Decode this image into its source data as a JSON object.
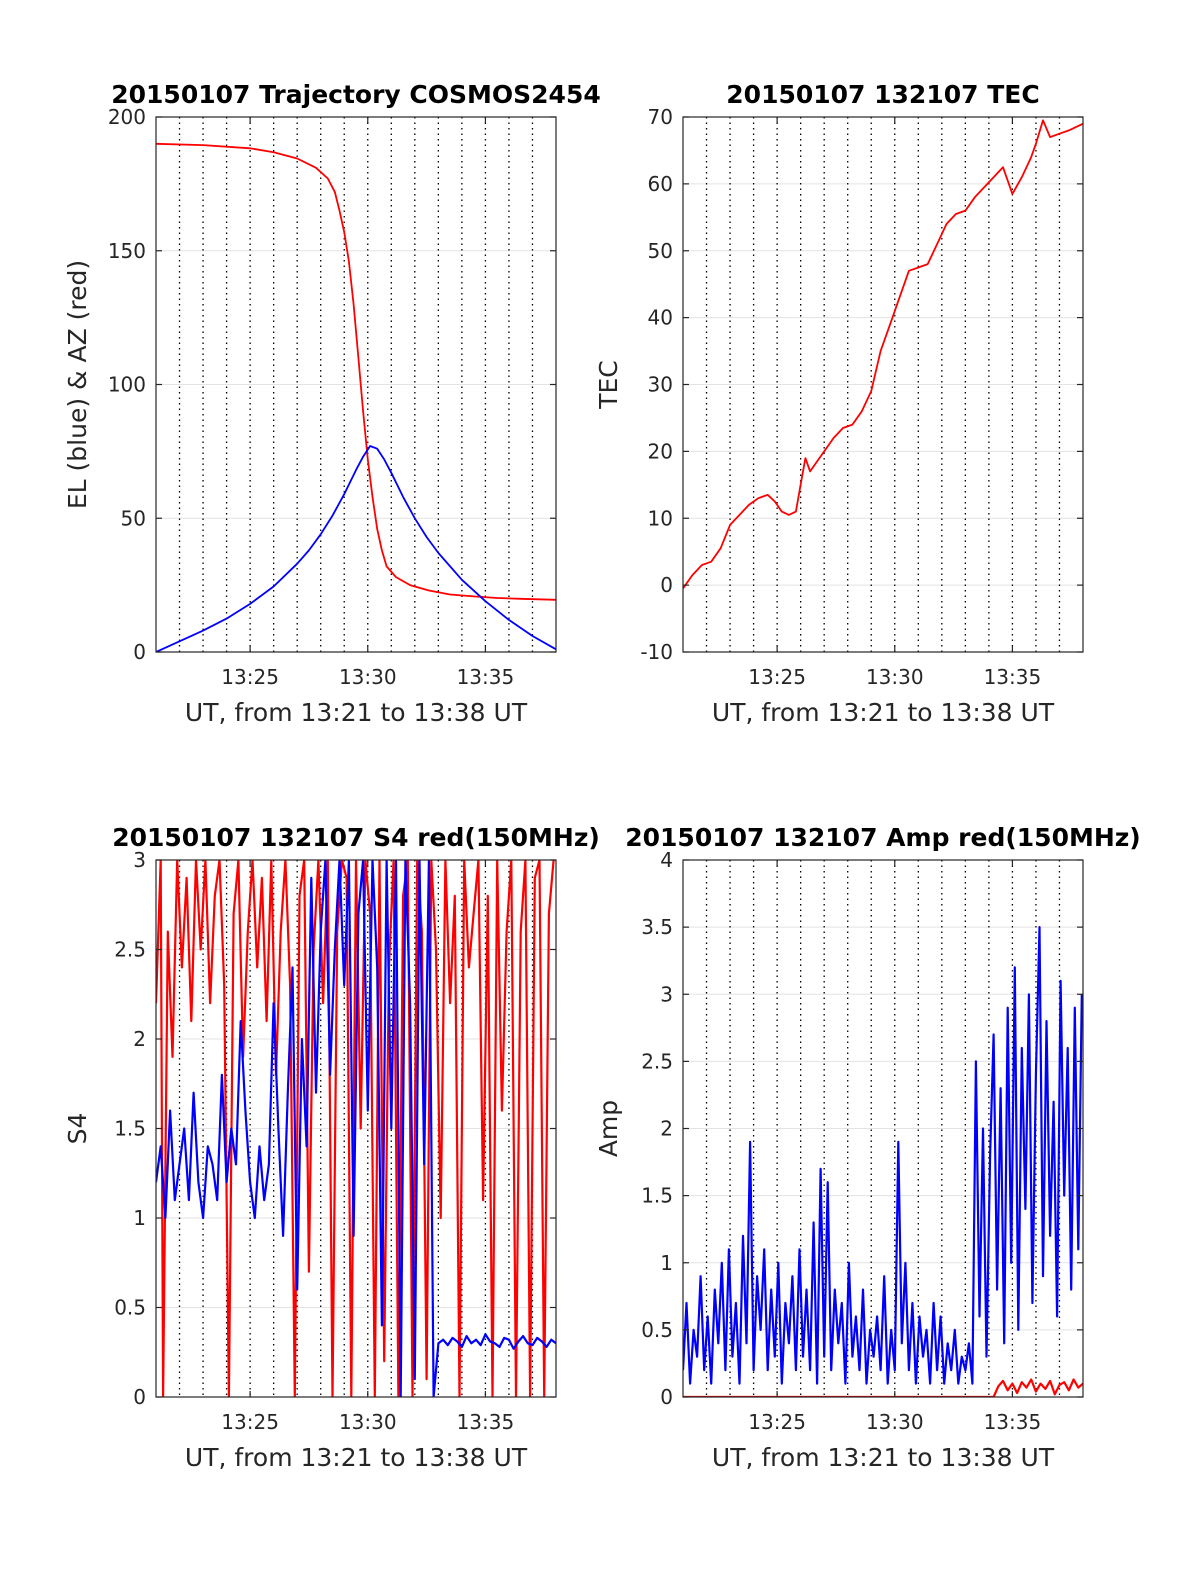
{
  "chart_data": [
    {
      "type": "line",
      "title": "20150107 Trajectory COSMOS2454",
      "xlabel": "UT, from 13:21 to 13:38 UT",
      "ylabel": "EL (blue) & AZ (red)",
      "xlim": [
        0,
        17
      ],
      "ylim": [
        0,
        200
      ],
      "xtick_values": [
        4,
        9,
        14
      ],
      "xtick_labels": [
        "13:25",
        "13:30",
        "13:35"
      ],
      "ytick_values": [
        0,
        50,
        100,
        150,
        200
      ],
      "ytick_labels": [
        "0",
        "50",
        "100",
        "150",
        "200"
      ],
      "vlines": [
        1,
        2,
        3,
        4,
        5,
        6,
        7,
        8,
        9,
        10,
        11,
        12,
        13,
        14,
        15,
        16
      ],
      "grid": true,
      "series": [
        {
          "color": "#ff0000",
          "x": [
            0,
            2,
            4,
            5,
            6,
            6.8,
            7.3,
            7.6,
            7.8,
            8.0,
            8.2,
            8.4,
            8.6,
            8.8,
            9.0,
            9.2,
            9.4,
            9.6,
            9.8,
            10.2,
            10.8,
            11.6,
            12.5,
            13.5,
            14.5,
            15.5,
            17
          ],
          "y": [
            190,
            189.5,
            188.3,
            186.8,
            184.5,
            181,
            177,
            172,
            165,
            157,
            146,
            130,
            110,
            90,
            72,
            58,
            46,
            38,
            32,
            28,
            25,
            23,
            21.5,
            20.8,
            20.2,
            19.9,
            19.5
          ]
        },
        {
          "color": "#0000ff",
          "x": [
            0,
            1,
            2,
            3,
            4,
            5,
            6,
            6.5,
            7,
            7.5,
            8,
            8.5,
            8.8,
            9.1,
            9.4,
            9.7,
            10,
            10.5,
            11,
            11.5,
            12,
            13,
            14,
            15,
            16,
            17
          ],
          "y": [
            0,
            4,
            8,
            12.5,
            18,
            24.5,
            33,
            38,
            44,
            51,
            59,
            68,
            73,
            77,
            76,
            72,
            67,
            58,
            50,
            43,
            37,
            27,
            19,
            12,
            6,
            1
          ]
        }
      ]
    },
    {
      "type": "line",
      "title": "20150107 132107 TEC",
      "xlabel": "UT, from 13:21 to 13:38 UT",
      "ylabel": "TEC",
      "xlim": [
        0,
        17
      ],
      "ylim": [
        -10,
        70
      ],
      "xtick_values": [
        4,
        9,
        14
      ],
      "xtick_labels": [
        "13:25",
        "13:30",
        "13:35"
      ],
      "ytick_values": [
        -10,
        0,
        10,
        20,
        30,
        40,
        50,
        60,
        70
      ],
      "ytick_labels": [
        "-10",
        "0",
        "10",
        "20",
        "30",
        "40",
        "50",
        "60",
        "70"
      ],
      "vlines": [
        1,
        2,
        3,
        4,
        5,
        6,
        7,
        8,
        9,
        10,
        11,
        12,
        13,
        14,
        15,
        16
      ],
      "grid": true,
      "series": [
        {
          "color": "#ff0000",
          "x": [
            0,
            0.4,
            0.8,
            1.2,
            1.6,
            2.0,
            2.4,
            2.8,
            3.2,
            3.6,
            3.9,
            4.2,
            4.5,
            4.8,
            5.0,
            5.2,
            5.4,
            5.7,
            6.0,
            6.4,
            6.8,
            7.2,
            7.6,
            8.0,
            8.4,
            8.8,
            9.2,
            9.6,
            10.0,
            10.4,
            10.8,
            11.2,
            11.6,
            12.0,
            12.4,
            12.8,
            13.2,
            13.6,
            14.0,
            14.4,
            14.8,
            15.0,
            15.3,
            15.6,
            16.0,
            16.4,
            17.0
          ],
          "y": [
            -0.5,
            1.5,
            3,
            3.5,
            5.5,
            9,
            10.5,
            12,
            13,
            13.5,
            12.5,
            11,
            10.5,
            11,
            15,
            19,
            17,
            18.5,
            20,
            22,
            23.5,
            24,
            26,
            29,
            35,
            39,
            43,
            47,
            47.5,
            48,
            51,
            54,
            55.5,
            56,
            58,
            59.5,
            61,
            62.5,
            58.5,
            61,
            64,
            66,
            69.5,
            67,
            67.5,
            68,
            69
          ]
        }
      ]
    },
    {
      "type": "line",
      "title": "20150107 132107 S4 red(150MHz)",
      "xlabel": "UT, from 13:21 to 13:38 UT",
      "ylabel": "S4",
      "xlim": [
        0,
        17
      ],
      "ylim": [
        0,
        3
      ],
      "xtick_values": [
        4,
        9,
        14
      ],
      "xtick_labels": [
        "13:25",
        "13:30",
        "13:35"
      ],
      "ytick_values": [
        0,
        0.5,
        1,
        1.5,
        2,
        2.5,
        3
      ],
      "ytick_labels": [
        "0",
        "0.5",
        "1",
        "1.5",
        "2",
        "2.5",
        "3"
      ],
      "vlines": [
        1,
        2,
        3,
        4,
        5,
        6,
        7,
        8,
        9,
        10,
        11,
        12,
        13,
        14,
        15,
        16
      ],
      "grid": true,
      "series": [
        {
          "color": "#ff0000",
          "x": [
            0.0,
            0.2,
            0.3,
            0.5,
            0.7,
            0.9,
            1.1,
            1.3,
            1.5,
            1.7,
            1.9,
            2.1,
            2.3,
            2.5,
            2.7,
            2.9,
            3.1,
            3.3,
            3.5,
            3.7,
            3.9,
            4.1,
            4.3,
            4.5,
            4.7,
            4.9,
            5.1,
            5.3,
            5.5,
            5.7,
            5.9,
            6.1,
            6.3,
            6.5,
            6.7,
            6.9,
            7.1,
            7.3,
            7.5,
            7.7,
            7.9,
            8.1,
            8.3,
            8.5,
            8.7,
            8.9,
            9.1,
            9.3,
            9.5,
            9.7,
            9.9,
            10.1,
            10.3,
            10.5,
            10.7,
            10.9,
            11.1,
            11.3,
            11.5,
            11.7,
            11.9,
            12.1,
            12.3,
            12.5,
            12.7,
            12.9,
            13.1,
            13.3,
            13.5,
            13.7,
            13.9,
            14.1,
            14.3,
            14.5,
            14.7,
            14.9,
            15.1,
            15.3,
            15.5,
            15.7,
            15.9,
            16.1,
            16.3,
            16.5,
            16.7,
            16.9
          ],
          "y": [
            2.2,
            3.0,
            0.0,
            2.6,
            1.9,
            3.0,
            2.4,
            2.9,
            2.1,
            3.0,
            2.5,
            3.0,
            2.2,
            2.8,
            3.0,
            2.3,
            0.0,
            2.7,
            3.0,
            1.9,
            2.6,
            3.0,
            2.4,
            2.9,
            2.1,
            3.0,
            1.8,
            2.6,
            3.0,
            2.3,
            0.0,
            2.8,
            3.0,
            0.7,
            2.5,
            3.0,
            2.2,
            3.0,
            0.0,
            2.6,
            3.0,
            2.9,
            0.0,
            3.0,
            1.5,
            3.0,
            2.7,
            0.0,
            3.0,
            0.2,
            2.4,
            3.0,
            0.0,
            2.8,
            3.0,
            0.0,
            3.0,
            2.6,
            0.1,
            3.0,
            2.5,
            1.0,
            3.0,
            2.2,
            2.8,
            0.0,
            3.0,
            2.4,
            2.7,
            3.0,
            1.1,
            2.8,
            0.0,
            3.0,
            1.6,
            2.6,
            3.0,
            0.0,
            2.6,
            3.0,
            0.0,
            2.9,
            3.0,
            0.0,
            2.7,
            3.0
          ]
        },
        {
          "color": "#0000ff",
          "x": [
            0.0,
            0.2,
            0.4,
            0.6,
            0.8,
            1.0,
            1.2,
            1.4,
            1.6,
            1.8,
            2.0,
            2.2,
            2.4,
            2.6,
            2.8,
            3.0,
            3.2,
            3.4,
            3.6,
            3.8,
            4.0,
            4.2,
            4.4,
            4.6,
            4.8,
            5.0,
            5.2,
            5.4,
            5.6,
            5.8,
            6.0,
            6.2,
            6.4,
            6.6,
            6.8,
            7.0,
            7.2,
            7.4,
            7.6,
            7.8,
            8.0,
            8.2,
            8.4,
            8.6,
            8.8,
            9.0,
            9.2,
            9.4,
            9.6,
            9.8,
            10.0,
            10.2,
            10.4,
            10.6,
            10.8,
            11.0,
            11.2,
            11.4,
            11.6,
            11.8,
            12.0,
            12.2,
            12.4,
            12.6,
            12.8,
            13.0,
            13.2,
            13.4,
            13.6,
            13.8,
            14.0,
            14.2,
            14.4,
            14.6,
            14.8,
            15.0,
            15.2,
            15.4,
            15.6,
            15.8,
            16.0,
            16.2,
            16.4,
            16.6,
            16.8,
            17.0
          ],
          "y": [
            1.2,
            1.4,
            1.0,
            1.6,
            1.1,
            1.3,
            1.5,
            1.1,
            1.7,
            1.2,
            1.0,
            1.4,
            1.3,
            1.1,
            1.8,
            1.2,
            1.5,
            1.3,
            2.1,
            1.6,
            1.2,
            1.0,
            1.4,
            1.1,
            1.3,
            2.2,
            1.5,
            0.9,
            1.7,
            2.4,
            0.6,
            2.0,
            1.4,
            2.9,
            1.7,
            2.6,
            3.0,
            1.8,
            2.5,
            3.0,
            2.3,
            3.0,
            0.9,
            2.7,
            3.0,
            1.6,
            3.0,
            2.4,
            0.4,
            3.0,
            1.5,
            3.0,
            0.0,
            3.0,
            2.2,
            0.1,
            3.0,
            1.3,
            3.0,
            0.0,
            0.3,
            0.32,
            0.29,
            0.33,
            0.31,
            0.28,
            0.34,
            0.3,
            0.32,
            0.29,
            0.35,
            0.31,
            0.3,
            0.28,
            0.33,
            0.32,
            0.27,
            0.31,
            0.34,
            0.3,
            0.29,
            0.33,
            0.31,
            0.28,
            0.32,
            0.3
          ]
        }
      ]
    },
    {
      "type": "line",
      "title": "20150107 132107 Amp red(150MHz)",
      "xlabel": "UT, from 13:21 to 13:38 UT",
      "ylabel": "Amp",
      "xlim": [
        0,
        17
      ],
      "ylim": [
        0,
        4
      ],
      "xtick_values": [
        4,
        9,
        14
      ],
      "xtick_labels": [
        "13:25",
        "13:30",
        "13:35"
      ],
      "ytick_values": [
        0,
        0.5,
        1,
        1.5,
        2,
        2.5,
        3,
        3.5,
        4
      ],
      "ytick_labels": [
        "0",
        "0.5",
        "1",
        "1.5",
        "2",
        "2.5",
        "3",
        "3.5",
        "4"
      ],
      "vlines": [
        1,
        2,
        3,
        4,
        5,
        6,
        7,
        8,
        9,
        10,
        11,
        12,
        13,
        14,
        15,
        16
      ],
      "grid": true,
      "series": [
        {
          "color": "#ff0000",
          "x": [
            0.0,
            2.0,
            4.0,
            6.0,
            8.0,
            10.0,
            12.0,
            13.2,
            13.4,
            13.6,
            13.8,
            14.0,
            14.2,
            14.4,
            14.6,
            14.8,
            15.0,
            15.2,
            15.4,
            15.6,
            15.8,
            16.0,
            16.2,
            16.4,
            16.6,
            16.8,
            17.0
          ],
          "y": [
            0.0,
            0.0,
            0.0,
            0.0,
            0.0,
            0.0,
            0.0,
            0.0,
            0.08,
            0.12,
            0.05,
            0.1,
            0.03,
            0.11,
            0.07,
            0.13,
            0.04,
            0.1,
            0.06,
            0.12,
            0.02,
            0.09,
            0.11,
            0.05,
            0.13,
            0.07,
            0.1
          ]
        },
        {
          "color": "#0000ff",
          "x": [
            0.0,
            0.15,
            0.3,
            0.45,
            0.6,
            0.75,
            0.9,
            1.05,
            1.2,
            1.35,
            1.5,
            1.65,
            1.8,
            1.95,
            2.1,
            2.25,
            2.4,
            2.55,
            2.7,
            2.85,
            3.0,
            3.15,
            3.3,
            3.45,
            3.6,
            3.75,
            3.9,
            4.05,
            4.2,
            4.35,
            4.5,
            4.65,
            4.8,
            4.95,
            5.1,
            5.25,
            5.4,
            5.55,
            5.7,
            5.85,
            6.0,
            6.15,
            6.3,
            6.45,
            6.6,
            6.75,
            6.9,
            7.05,
            7.2,
            7.35,
            7.5,
            7.65,
            7.8,
            7.95,
            8.1,
            8.25,
            8.4,
            8.55,
            8.7,
            8.85,
            9.0,
            9.15,
            9.3,
            9.45,
            9.6,
            9.75,
            9.9,
            10.05,
            10.2,
            10.35,
            10.5,
            10.65,
            10.8,
            10.95,
            11.1,
            11.25,
            11.4,
            11.55,
            11.7,
            11.85,
            12.0,
            12.15,
            12.3,
            12.45,
            12.6,
            12.75,
            12.9,
            13.05,
            13.2,
            13.35,
            13.5,
            13.65,
            13.8,
            13.95,
            14.1,
            14.25,
            14.4,
            14.55,
            14.7,
            14.85,
            15.0,
            15.15,
            15.3,
            15.45,
            15.6,
            15.75,
            15.9,
            16.05,
            16.2,
            16.35,
            16.5,
            16.65,
            16.8,
            16.95
          ],
          "y": [
            0.2,
            0.7,
            0.1,
            0.5,
            0.3,
            0.9,
            0.2,
            0.6,
            0.1,
            0.8,
            0.4,
            1.0,
            0.2,
            1.1,
            0.3,
            0.7,
            0.1,
            1.2,
            0.4,
            1.9,
            0.2,
            0.9,
            0.5,
            1.1,
            0.2,
            0.8,
            0.3,
            1.0,
            0.1,
            0.7,
            0.4,
            0.9,
            0.2,
            1.1,
            0.3,
            0.8,
            0.2,
            1.3,
            0.1,
            1.7,
            0.3,
            1.6,
            0.2,
            0.8,
            0.4,
            0.7,
            0.1,
            1.0,
            0.3,
            0.6,
            0.2,
            0.8,
            0.1,
            0.5,
            0.3,
            0.6,
            0.2,
            0.9,
            0.1,
            0.5,
            0.2,
            1.9,
            0.4,
            1.0,
            0.2,
            0.7,
            0.1,
            0.6,
            0.3,
            0.5,
            0.1,
            0.7,
            0.2,
            0.6,
            0.1,
            0.4,
            0.2,
            0.5,
            0.1,
            0.3,
            0.2,
            0.4,
            0.1,
            2.5,
            0.6,
            2.0,
            0.3,
            1.8,
            2.7,
            0.8,
            2.3,
            0.4,
            2.9,
            1.0,
            3.2,
            0.5,
            2.6,
            1.4,
            3.0,
            0.7,
            2.4,
            3.5,
            0.9,
            2.8,
            1.2,
            2.2,
            0.6,
            3.1,
            1.5,
            2.6,
            0.8,
            2.9,
            1.1,
            3.0
          ]
        }
      ]
    }
  ]
}
